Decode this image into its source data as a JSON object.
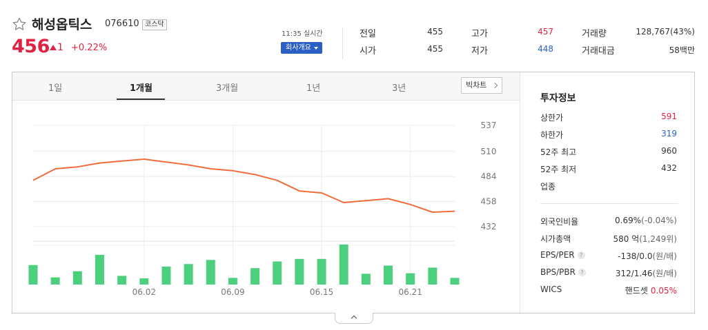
{
  "stock": {
    "name": "해성옵틱스",
    "code": "076610",
    "market": "코스닥",
    "price": "456",
    "change": "1",
    "change_rate": "+0.22%"
  },
  "realtime": {
    "time": "11:35 실시간",
    "company_button": "회사개요"
  },
  "summary": {
    "prev_label": "전일",
    "prev_value": "455",
    "open_label": "시가",
    "open_value": "455",
    "high_label": "고가",
    "high_value": "457",
    "low_label": "저가",
    "low_value": "448",
    "volume_label": "거래량",
    "volume_value": "128,767(43%)",
    "amount_label": "거래대금",
    "amount_value": "58백만"
  },
  "tabs": [
    "1일",
    "1개월",
    "3개월",
    "1년",
    "3년"
  ],
  "active_tab": "1개월",
  "big_chart_button": "빅차트",
  "colors": {
    "up": "#e12343",
    "down": "#2b5fc5",
    "line": "#f26b3a",
    "volume": "#4cd07d"
  },
  "chart_data": {
    "type": "line",
    "title": "",
    "y_ticks": [
      "537",
      "510",
      "484",
      "458",
      "432"
    ],
    "ylim": [
      432,
      537
    ],
    "x_ticks": [
      "06.02",
      "06.09",
      "06.15",
      "06.21"
    ],
    "x_tick_index": [
      5,
      9,
      13,
      17
    ],
    "series": [
      {
        "values": [
          480,
          492,
          494,
          498,
          500,
          502,
          499,
          496,
          492,
          490,
          486,
          480,
          469,
          467,
          457,
          459,
          461,
          455,
          447,
          448
        ]
      }
    ],
    "volume": [
      38,
      14,
      26,
      58,
      17,
      12,
      35,
      40,
      48,
      13,
      32,
      45,
      50,
      50,
      78,
      21,
      37,
      22,
      33,
      13
    ],
    "volume_unit": "relative",
    "grid": true
  },
  "invest": {
    "title": "투자정보",
    "rows": [
      {
        "label": "상한가",
        "value": "591",
        "tone": "red"
      },
      {
        "label": "하한가",
        "value": "319",
        "tone": "blue"
      },
      {
        "label": "52주 최고",
        "value": "960",
        "tone": ""
      },
      {
        "label": "52주 최저",
        "value": "432",
        "tone": ""
      },
      {
        "label": "업종",
        "value": "",
        "tone": ""
      }
    ],
    "rows2": [
      {
        "label": "외국인비율",
        "value": "0.69%",
        "sub": "(-0.04%)",
        "help": false
      },
      {
        "label": "시가총액",
        "value": "580 억",
        "sub": "(1,249위)",
        "help": false
      },
      {
        "label": "EPS/PER",
        "value": "-138/0.0",
        "sub": "(원/배)",
        "help": true
      },
      {
        "label": "BPS/PBR",
        "value": "312/1.46",
        "sub": "(원/배)",
        "help": true
      },
      {
        "label": "WICS",
        "value": "핸드셋",
        "sub": "0.05%",
        "help": false
      }
    ]
  },
  "icons": {
    "favorite": "star-icon",
    "collapse": "chevron-up-icon",
    "big_chart": "chevron-right-icon"
  }
}
